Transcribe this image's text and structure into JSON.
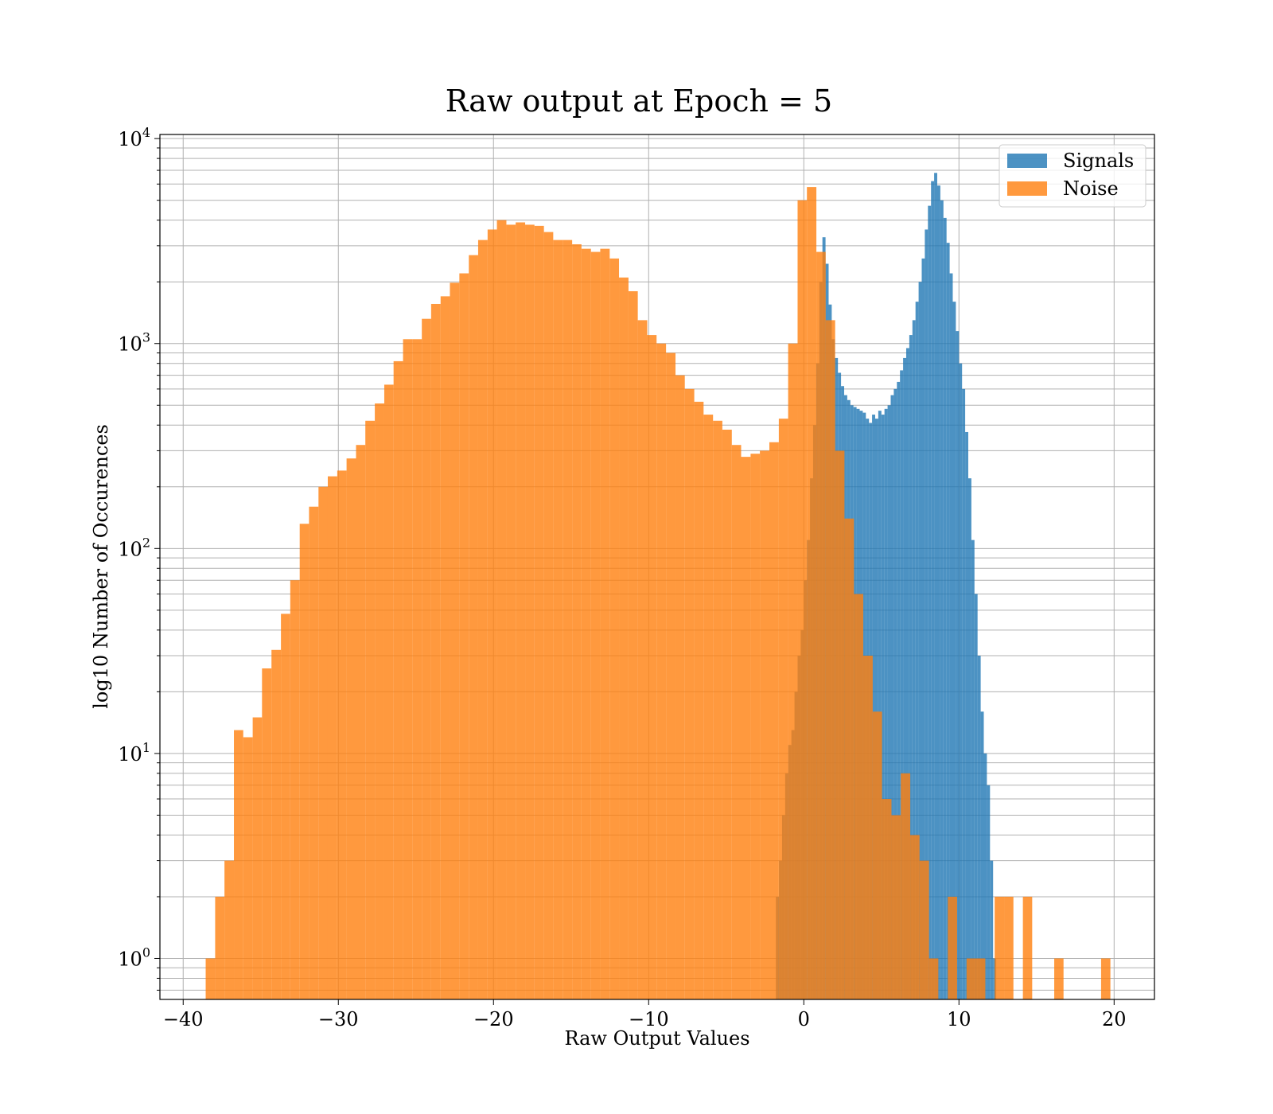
{
  "chart_data": {
    "type": "bar",
    "title": "Raw output at Epoch = 5",
    "xlabel": "Raw Output Values",
    "ylabel": "log10 Number of Occurences",
    "xlim": [
      -41.5,
      22.6
    ],
    "ylim_log10": [
      -0.2,
      4.02
    ],
    "y_scale": "log",
    "grid": true,
    "legend_placement": "top-right",
    "x_ticks": [
      -40,
      -30,
      -20,
      -10,
      0,
      10,
      20
    ],
    "x_tick_labels": [
      "−40",
      "−30",
      "−20",
      "−10",
      "0",
      "10",
      "20"
    ],
    "y_tick_exponents": [
      0,
      1,
      2,
      3,
      4
    ],
    "y_tick_base": "10",
    "series": [
      {
        "name": "Signals",
        "color": "#1f77b4",
        "opacity": 0.8,
        "bins": [
          [
            -1.8,
            -1.6,
            2
          ],
          [
            -1.6,
            -1.4,
            3
          ],
          [
            -1.4,
            -1.2,
            5
          ],
          [
            -1.2,
            -1.0,
            8
          ],
          [
            -1.0,
            -0.8,
            11
          ],
          [
            -0.8,
            -0.6,
            13
          ],
          [
            -0.6,
            -0.4,
            20
          ],
          [
            -0.4,
            -0.2,
            30
          ],
          [
            -0.2,
            0.0,
            40
          ],
          [
            0.0,
            0.2,
            70
          ],
          [
            0.2,
            0.4,
            110
          ],
          [
            0.4,
            0.6,
            220
          ],
          [
            0.6,
            0.8,
            400
          ],
          [
            0.8,
            1.0,
            800
          ],
          [
            1.0,
            1.2,
            2000
          ],
          [
            1.2,
            1.4,
            3300
          ],
          [
            1.4,
            1.6,
            2450
          ],
          [
            1.6,
            1.8,
            1550
          ],
          [
            1.8,
            2.0,
            1050
          ],
          [
            2.0,
            2.2,
            850
          ],
          [
            2.2,
            2.4,
            720
          ],
          [
            2.4,
            2.6,
            620
          ],
          [
            2.6,
            2.8,
            560
          ],
          [
            2.8,
            3.0,
            530
          ],
          [
            3.0,
            3.2,
            500
          ],
          [
            3.2,
            3.4,
            490
          ],
          [
            3.4,
            3.6,
            480
          ],
          [
            3.6,
            3.8,
            470
          ],
          [
            3.8,
            4.0,
            460
          ],
          [
            4.0,
            4.2,
            430
          ],
          [
            4.2,
            4.4,
            410
          ],
          [
            4.4,
            4.6,
            450
          ],
          [
            4.6,
            4.8,
            430
          ],
          [
            4.8,
            5.0,
            470
          ],
          [
            5.0,
            5.2,
            450
          ],
          [
            5.2,
            5.4,
            480
          ],
          [
            5.4,
            5.6,
            500
          ],
          [
            5.6,
            5.8,
            560
          ],
          [
            5.8,
            6.0,
            600
          ],
          [
            6.0,
            6.2,
            650
          ],
          [
            6.2,
            6.4,
            740
          ],
          [
            6.4,
            6.6,
            850
          ],
          [
            6.6,
            6.8,
            950
          ],
          [
            6.8,
            7.0,
            1100
          ],
          [
            7.0,
            7.2,
            1300
          ],
          [
            7.2,
            7.4,
            1600
          ],
          [
            7.4,
            7.6,
            2000
          ],
          [
            7.6,
            7.8,
            2600
          ],
          [
            7.8,
            8.0,
            3600
          ],
          [
            8.0,
            8.2,
            4700
          ],
          [
            8.2,
            8.4,
            6200
          ],
          [
            8.4,
            8.6,
            6800
          ],
          [
            8.6,
            8.8,
            5900
          ],
          [
            8.8,
            9.0,
            5000
          ],
          [
            9.0,
            9.2,
            4100
          ],
          [
            9.2,
            9.4,
            3100
          ],
          [
            9.4,
            9.6,
            2200
          ],
          [
            9.6,
            9.8,
            1600
          ],
          [
            9.8,
            10.0,
            1150
          ],
          [
            10.0,
            10.2,
            800
          ],
          [
            10.2,
            10.4,
            600
          ],
          [
            10.4,
            10.6,
            370
          ],
          [
            10.6,
            10.8,
            220
          ],
          [
            10.8,
            11.0,
            110
          ],
          [
            11.0,
            11.2,
            60
          ],
          [
            11.2,
            11.4,
            30
          ],
          [
            11.4,
            11.6,
            16
          ],
          [
            11.6,
            11.8,
            10
          ],
          [
            11.8,
            12.0,
            7
          ],
          [
            12.0,
            12.2,
            3
          ],
          [
            12.2,
            12.4,
            1
          ]
        ]
      },
      {
        "name": "Noise",
        "color": "#ff7f0e",
        "opacity": 0.8,
        "bins": [
          [
            -38.55,
            -37.94,
            1
          ],
          [
            -37.94,
            -37.34,
            2
          ],
          [
            -37.34,
            -36.73,
            3
          ],
          [
            -36.73,
            -36.13,
            13
          ],
          [
            -36.13,
            -35.52,
            12
          ],
          [
            -35.52,
            -34.92,
            15
          ],
          [
            -34.92,
            -34.31,
            26
          ],
          [
            -34.31,
            -33.7,
            32
          ],
          [
            -33.7,
            -33.1,
            48
          ],
          [
            -33.1,
            -32.49,
            70
          ],
          [
            -32.49,
            -31.89,
            132
          ],
          [
            -31.89,
            -31.28,
            160
          ],
          [
            -31.28,
            -30.68,
            200
          ],
          [
            -30.68,
            -30.07,
            225
          ],
          [
            -30.07,
            -29.47,
            240
          ],
          [
            -29.47,
            -28.86,
            275
          ],
          [
            -28.86,
            -28.26,
            320
          ],
          [
            -28.26,
            -27.65,
            420
          ],
          [
            -27.65,
            -27.04,
            510
          ],
          [
            -27.04,
            -26.44,
            630
          ],
          [
            -26.44,
            -25.83,
            820
          ],
          [
            -25.83,
            -25.23,
            1050
          ],
          [
            -25.23,
            -24.62,
            1050
          ],
          [
            -24.62,
            -24.02,
            1320
          ],
          [
            -24.02,
            -23.41,
            1560
          ],
          [
            -23.41,
            -22.81,
            1700
          ],
          [
            -22.81,
            -22.2,
            1980
          ],
          [
            -22.2,
            -21.59,
            2200
          ],
          [
            -21.59,
            -20.99,
            2700
          ],
          [
            -20.99,
            -20.38,
            3200
          ],
          [
            -20.38,
            -19.78,
            3600
          ],
          [
            -19.78,
            -19.17,
            4000
          ],
          [
            -19.17,
            -18.57,
            3800
          ],
          [
            -18.57,
            -17.96,
            3900
          ],
          [
            -17.96,
            -17.36,
            3800
          ],
          [
            -17.36,
            -16.75,
            3750
          ],
          [
            -16.75,
            -16.15,
            3500
          ],
          [
            -16.15,
            -15.54,
            3200
          ],
          [
            -15.54,
            -14.93,
            3200
          ],
          [
            -14.93,
            -14.33,
            3050
          ],
          [
            -14.33,
            -13.72,
            2900
          ],
          [
            -13.72,
            -13.12,
            2800
          ],
          [
            -13.12,
            -12.51,
            2900
          ],
          [
            -12.51,
            -11.91,
            2600
          ],
          [
            -11.91,
            -11.3,
            2100
          ],
          [
            -11.3,
            -10.7,
            1800
          ],
          [
            -10.7,
            -10.09,
            1300
          ],
          [
            -10.09,
            -9.49,
            1100
          ],
          [
            -9.49,
            -8.88,
            1000
          ],
          [
            -8.88,
            -8.27,
            900
          ],
          [
            -8.27,
            -7.67,
            700
          ],
          [
            -7.67,
            -7.06,
            600
          ],
          [
            -7.06,
            -6.46,
            520
          ],
          [
            -6.46,
            -5.85,
            450
          ],
          [
            -5.85,
            -5.25,
            420
          ],
          [
            -5.25,
            -4.64,
            380
          ],
          [
            -4.64,
            -4.04,
            320
          ],
          [
            -4.04,
            -3.43,
            280
          ],
          [
            -3.43,
            -2.83,
            290
          ],
          [
            -2.83,
            -2.22,
            300
          ],
          [
            -2.22,
            -1.61,
            330
          ],
          [
            -1.61,
            -1.01,
            430
          ],
          [
            -1.01,
            -0.4,
            1000
          ],
          [
            -0.4,
            0.2,
            5000
          ],
          [
            0.2,
            0.81,
            5800
          ],
          [
            0.81,
            1.41,
            2800
          ],
          [
            1.41,
            2.02,
            1300
          ],
          [
            2.02,
            2.62,
            300
          ],
          [
            2.62,
            3.23,
            140
          ],
          [
            3.23,
            3.83,
            60
          ],
          [
            3.83,
            4.44,
            30
          ],
          [
            4.44,
            5.04,
            16
          ],
          [
            5.04,
            5.65,
            6
          ],
          [
            5.65,
            6.25,
            5
          ],
          [
            6.25,
            6.86,
            8
          ],
          [
            6.86,
            7.46,
            4
          ],
          [
            7.46,
            8.07,
            3
          ],
          [
            8.07,
            8.67,
            1
          ],
          [
            9.28,
            9.88,
            2
          ],
          [
            10.49,
            11.09,
            1
          ],
          [
            11.09,
            11.7,
            1
          ],
          [
            12.3,
            12.91,
            2
          ],
          [
            12.91,
            13.51,
            2
          ],
          [
            14.12,
            14.72,
            2
          ],
          [
            16.14,
            16.74,
            1
          ],
          [
            19.16,
            19.76,
            1
          ]
        ]
      }
    ]
  }
}
